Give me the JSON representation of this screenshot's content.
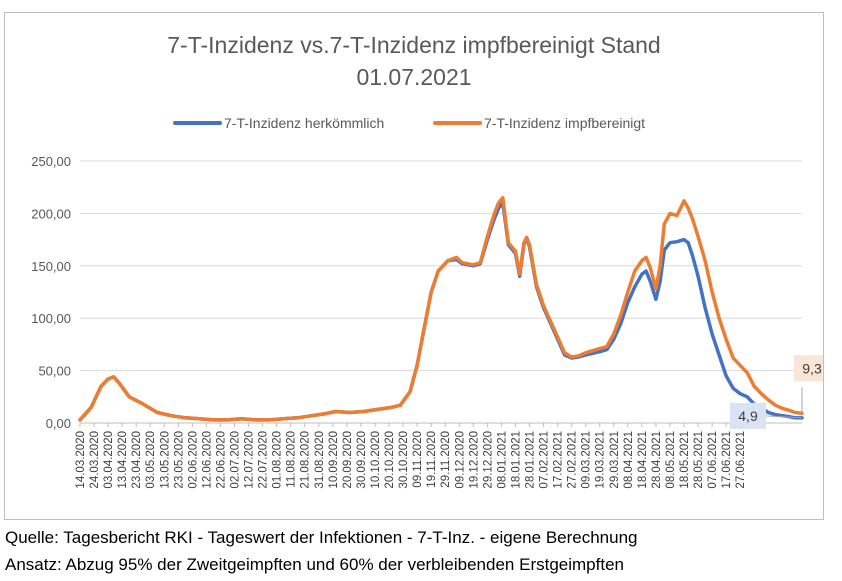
{
  "chart_data": {
    "type": "line",
    "title_lines": [
      "7-T-Inzidenz vs.7-T-Inzidenz impfbereinigt Stand",
      "01.07.2021"
    ],
    "xlabel": "",
    "ylabel": "",
    "ylim": [
      0,
      250
    ],
    "yticks": [
      "0,00",
      "50,00",
      "100,00",
      "150,00",
      "200,00",
      "250,00"
    ],
    "ytick_values": [
      0,
      50,
      100,
      150,
      200,
      250
    ],
    "grid": true,
    "legend_position": "top",
    "x_start": "14.03.2020",
    "x_end": "01.07.2021",
    "xtick_labels": [
      "14.03.2020",
      "24.03.2020",
      "03.04.2020",
      "13.04.2020",
      "23.04.2020",
      "03.05.2020",
      "13.05.2020",
      "23.05.2020",
      "02.06.2020",
      "12.06.2020",
      "22.06.2020",
      "02.07.2020",
      "12.07.2020",
      "22.07.2020",
      "01.08.2020",
      "11.08.2020",
      "21.08.2020",
      "31.08.2020",
      "10.09.2020",
      "20.09.2020",
      "30.09.2020",
      "10.10.2020",
      "20.10.2020",
      "30.10.2020",
      "09.11.2020",
      "19.11.2020",
      "29.11.2020",
      "09.12.2020",
      "19.12.2020",
      "29.12.2020",
      "08.01.2021",
      "18.01.2021",
      "28.01.2021",
      "07.02.2021",
      "17.02.2021",
      "27.02.2021",
      "09.03.2021",
      "19.03.2021",
      "29.03.2021",
      "08.04.2021",
      "18.04.2021",
      "28.04.2021",
      "08.05.2021",
      "18.05.2021",
      "28.05.2021",
      "07.06.2021",
      "17.06.2021",
      "27.06.2021"
    ],
    "series": [
      {
        "name": "7-T-Inzidenz herkömmlich",
        "color": "#4472c4",
        "points": [
          [
            0,
            3
          ],
          [
            8,
            15
          ],
          [
            15,
            35
          ],
          [
            20,
            42
          ],
          [
            24,
            44
          ],
          [
            28,
            38
          ],
          [
            35,
            25
          ],
          [
            45,
            18
          ],
          [
            55,
            10
          ],
          [
            65,
            7
          ],
          [
            75,
            5
          ],
          [
            85,
            4
          ],
          [
            95,
            3
          ],
          [
            105,
            3
          ],
          [
            115,
            4
          ],
          [
            125,
            3
          ],
          [
            135,
            3
          ],
          [
            145,
            4
          ],
          [
            155,
            5
          ],
          [
            165,
            7
          ],
          [
            175,
            9
          ],
          [
            182,
            11
          ],
          [
            192,
            10
          ],
          [
            202,
            11
          ],
          [
            212,
            13
          ],
          [
            222,
            15
          ],
          [
            228,
            17
          ],
          [
            235,
            30
          ],
          [
            240,
            55
          ],
          [
            245,
            90
          ],
          [
            250,
            125
          ],
          [
            255,
            145
          ],
          [
            262,
            155
          ],
          [
            268,
            156
          ],
          [
            272,
            152
          ],
          [
            280,
            150
          ],
          [
            285,
            152
          ],
          [
            290,
            175
          ],
          [
            295,
            195
          ],
          [
            298,
            205
          ],
          [
            301,
            210
          ],
          [
            305,
            170
          ],
          [
            310,
            162
          ],
          [
            313,
            140
          ],
          [
            316,
            170
          ],
          [
            318,
            177
          ],
          [
            320,
            168
          ],
          [
            325,
            130
          ],
          [
            330,
            110
          ],
          [
            335,
            95
          ],
          [
            340,
            80
          ],
          [
            345,
            65
          ],
          [
            350,
            62
          ],
          [
            355,
            63
          ],
          [
            360,
            65
          ],
          [
            370,
            68
          ],
          [
            375,
            70
          ],
          [
            380,
            80
          ],
          [
            385,
            95
          ],
          [
            390,
            115
          ],
          [
            395,
            130
          ],
          [
            400,
            142
          ],
          [
            403,
            145
          ],
          [
            406,
            135
          ],
          [
            410,
            118
          ],
          [
            413,
            135
          ],
          [
            416,
            165
          ],
          [
            420,
            172
          ],
          [
            425,
            173
          ],
          [
            430,
            175
          ],
          [
            433,
            172
          ],
          [
            436,
            160
          ],
          [
            440,
            140
          ],
          [
            445,
            110
          ],
          [
            450,
            85
          ],
          [
            455,
            65
          ],
          [
            460,
            45
          ],
          [
            465,
            33
          ],
          [
            470,
            28
          ],
          [
            475,
            25
          ],
          [
            480,
            18
          ],
          [
            485,
            14
          ],
          [
            490,
            10
          ],
          [
            495,
            8
          ],
          [
            500,
            7
          ],
          [
            505,
            6
          ],
          [
            509,
            5
          ],
          [
            514,
            4.9
          ]
        ]
      },
      {
        "name": "7-T-Inzidenz impfbereinigt",
        "color": "#ed7d31",
        "points": [
          [
            0,
            3
          ],
          [
            8,
            15
          ],
          [
            15,
            35
          ],
          [
            20,
            42
          ],
          [
            24,
            44
          ],
          [
            28,
            38
          ],
          [
            35,
            25
          ],
          [
            45,
            18
          ],
          [
            55,
            10
          ],
          [
            65,
            7
          ],
          [
            75,
            5
          ],
          [
            85,
            4
          ],
          [
            95,
            3
          ],
          [
            105,
            3
          ],
          [
            115,
            4
          ],
          [
            125,
            3
          ],
          [
            135,
            3
          ],
          [
            145,
            4
          ],
          [
            155,
            5
          ],
          [
            165,
            7
          ],
          [
            175,
            9
          ],
          [
            182,
            11
          ],
          [
            192,
            10
          ],
          [
            202,
            11
          ],
          [
            212,
            13
          ],
          [
            222,
            15
          ],
          [
            228,
            17
          ],
          [
            235,
            30
          ],
          [
            240,
            55
          ],
          [
            245,
            90
          ],
          [
            250,
            125
          ],
          [
            255,
            145
          ],
          [
            262,
            155
          ],
          [
            268,
            158
          ],
          [
            272,
            153
          ],
          [
            280,
            151
          ],
          [
            285,
            153
          ],
          [
            290,
            178
          ],
          [
            295,
            200
          ],
          [
            298,
            210
          ],
          [
            301,
            215
          ],
          [
            305,
            172
          ],
          [
            310,
            164
          ],
          [
            313,
            142
          ],
          [
            316,
            172
          ],
          [
            318,
            177
          ],
          [
            320,
            170
          ],
          [
            325,
            132
          ],
          [
            330,
            112
          ],
          [
            335,
            97
          ],
          [
            340,
            82
          ],
          [
            345,
            67
          ],
          [
            350,
            63
          ],
          [
            355,
            64
          ],
          [
            360,
            67
          ],
          [
            370,
            71
          ],
          [
            375,
            73
          ],
          [
            380,
            85
          ],
          [
            385,
            103
          ],
          [
            390,
            125
          ],
          [
            395,
            145
          ],
          [
            400,
            155
          ],
          [
            403,
            158
          ],
          [
            406,
            148
          ],
          [
            410,
            128
          ],
          [
            413,
            150
          ],
          [
            416,
            190
          ],
          [
            420,
            200
          ],
          [
            425,
            198
          ],
          [
            430,
            212
          ],
          [
            433,
            205
          ],
          [
            436,
            195
          ],
          [
            440,
            178
          ],
          [
            445,
            155
          ],
          [
            450,
            125
          ],
          [
            455,
            100
          ],
          [
            460,
            80
          ],
          [
            465,
            62
          ],
          [
            470,
            55
          ],
          [
            475,
            48
          ],
          [
            480,
            35
          ],
          [
            485,
            28
          ],
          [
            490,
            22
          ],
          [
            495,
            17
          ],
          [
            500,
            14
          ],
          [
            505,
            12
          ],
          [
            509,
            10
          ],
          [
            514,
            9.3
          ]
        ]
      }
    ],
    "data_labels": [
      {
        "series": 0,
        "text": "4,9"
      },
      {
        "series": 1,
        "text": "9,3"
      }
    ]
  },
  "footer": {
    "source": "Quelle: Tagesbericht RKI - Tageswert der Infektionen - 7-T-Inz. - eigene Berechnung",
    "approach": "Ansatz: Abzug 95% der Zweitgeimpften und 60% der verbleibenden Erstgeimpften"
  }
}
